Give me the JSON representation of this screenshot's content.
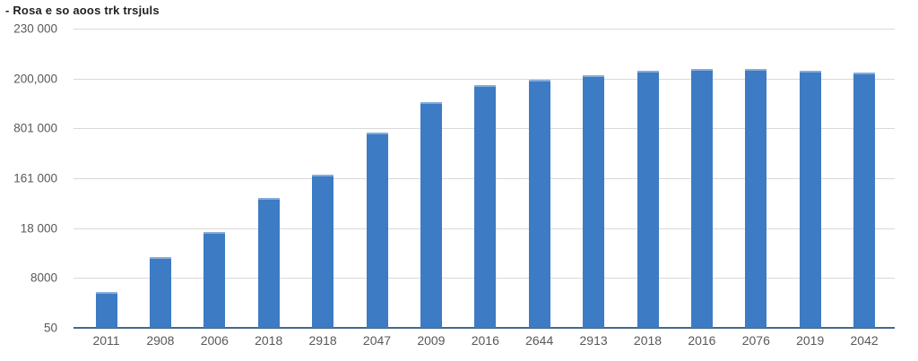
{
  "chart_data": {
    "type": "bar",
    "title": "- Rosa e so aoos trk trsjuls",
    "categories": [
      "2011",
      "2908",
      "2006",
      "2018",
      "2918",
      "2047",
      "2009",
      "2016",
      "2644",
      "2913",
      "2018",
      "2016",
      "2076",
      "2019",
      "2042"
    ],
    "values": [
      29000,
      57000,
      77000,
      104000,
      123000,
      157000,
      181000,
      195000,
      199000,
      203000,
      206000,
      208000,
      208000,
      206000,
      205000
    ],
    "y_tick_labels_top_to_bottom": [
      "230 000",
      "200,000",
      "801 000",
      "161 000",
      "18 000",
      "8000",
      "50"
    ],
    "ylim": [
      0,
      240000
    ],
    "grid": true,
    "legend": false,
    "xlabel": "",
    "ylabel": "",
    "colors": {
      "bar": "#3d7bc4",
      "bar_top_highlight": "#85acd9",
      "gridline": "#d9d9d9",
      "axis_line": "#44688f",
      "tick_label": "#595959",
      "title": "#1f1f1f",
      "background": "#ffffff"
    }
  }
}
